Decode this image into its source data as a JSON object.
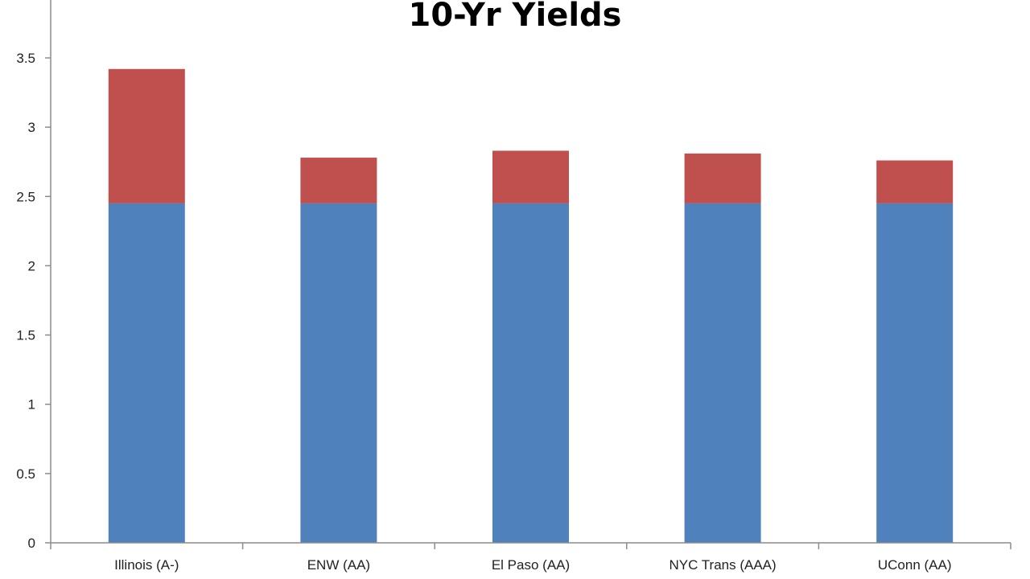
{
  "chart_data": {
    "type": "bar",
    "stacked": true,
    "title": "10-Yr Yields",
    "xlabel": "",
    "ylabel": "",
    "categories": [
      "Illinois (A-)",
      "ENW (AA)",
      "El Paso (AA)",
      "NYC Trans (AAA)",
      "UConn (AA)"
    ],
    "series": [
      {
        "values": [
          2.45,
          2.45,
          2.45,
          2.45,
          2.45
        ],
        "color": "#4f81bd"
      },
      {
        "values": [
          0.97,
          0.33,
          0.38,
          0.36,
          0.31
        ],
        "color": "#c0504d"
      }
    ],
    "ylim": [
      0,
      3.8
    ],
    "yticks": [
      0,
      0.5,
      1,
      1.5,
      2,
      2.5,
      3,
      3.5
    ],
    "ytick_labels": [
      "0",
      "0.5",
      "1",
      "1.5",
      "2",
      "2.5",
      "3",
      "3.5"
    ],
    "grid": false,
    "legend": "none"
  }
}
